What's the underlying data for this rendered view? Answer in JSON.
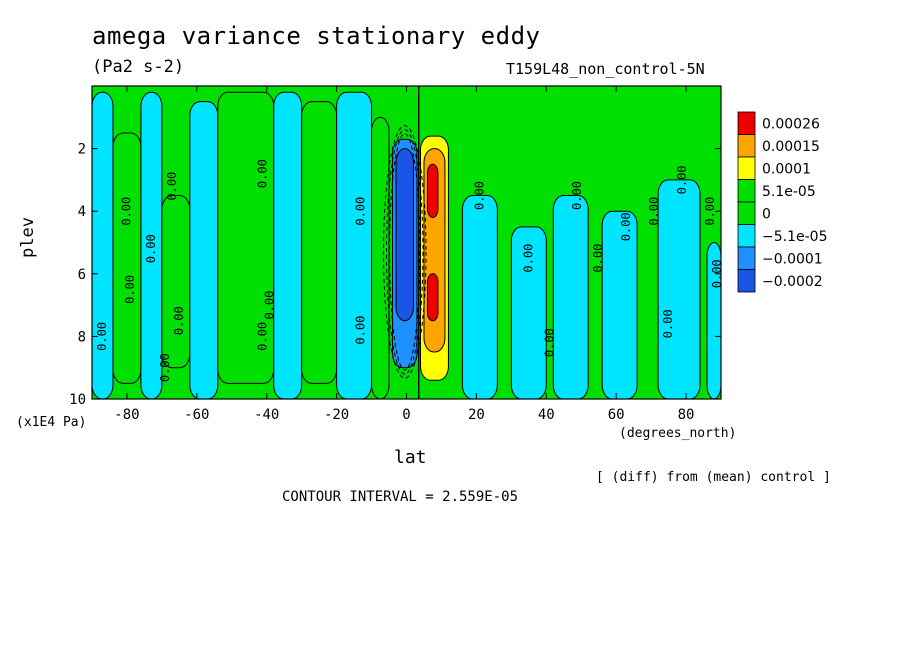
{
  "header": {
    "title": "amega variance stationary eddy",
    "units": "(Pa2 s-2)",
    "run_id": "T159L48_non_control-5N"
  },
  "axes": {
    "y_label": "plev",
    "y_units": "(x1E4 Pa)",
    "x_label": "lat",
    "x_units": "(degrees_north)"
  },
  "footer": {
    "diff_note": "[ (diff) from (mean) control ]",
    "contour_interval": "CONTOUR INTERVAL = 2.559E-05"
  },
  "colors": {
    "green": "#00e000",
    "cyan": "#00e5ff",
    "blue_mid": "#1e90ff",
    "blue_dark": "#1a55e6",
    "yellow": "#ffff00",
    "orange": "#ffa500",
    "red": "#ee0000"
  },
  "chart_data": {
    "type": "heatmap",
    "subtype": "filled contour",
    "x_label": "lat",
    "y_label": "plev",
    "xlim": [
      -90,
      90
    ],
    "ylim": [
      0,
      10
    ],
    "y_inverted": true,
    "x_ticks": [
      "-80",
      "-60",
      "-40",
      "-20",
      "0",
      "20",
      "40",
      "60",
      "80"
    ],
    "x_tick_values": [
      -80,
      -60,
      -40,
      -20,
      0,
      20,
      40,
      60,
      80
    ],
    "y_ticks": [
      "2",
      "4",
      "6",
      "8",
      "10"
    ],
    "y_tick_values": [
      2,
      4,
      6,
      8,
      10
    ],
    "legend": {
      "placement": "right",
      "levels": [
        "0.00026",
        "0.00015",
        "0.0001",
        "5.1e-05",
        "0",
        "−5.1e-05",
        "−0.0001",
        "−0.0002"
      ],
      "colors": [
        "#ee0000",
        "#ffa500",
        "#ffff00",
        "#00e000",
        "#00e000",
        "#00e5ff",
        "#1e90ff",
        "#1a55e6"
      ]
    },
    "contour_labels": [
      "0.00",
      "0.00",
      "0.00",
      "0.00",
      "0.00",
      "0.00",
      "0.00",
      "0.00",
      "0.00",
      "0.00",
      "0.00",
      "0.00",
      "0.00",
      "0.00",
      "0.00",
      "0.00",
      "0.00",
      "0.00",
      "0.00",
      "0.00",
      "0.00",
      "0.00",
      "0.00"
    ],
    "regions": [
      {
        "fill": "#00e5ff",
        "lat": [
          -90,
          -84
        ],
        "plev": [
          0.2,
          10
        ]
      },
      {
        "fill": "#00e000",
        "lat": [
          -84,
          -76
        ],
        "plev": [
          1.5,
          9.5
        ]
      },
      {
        "fill": "#00e5ff",
        "lat": [
          -76,
          -70
        ],
        "plev": [
          0.2,
          10
        ]
      },
      {
        "fill": "#00e000",
        "lat": [
          -70,
          -62
        ],
        "plev": [
          3.5,
          9
        ]
      },
      {
        "fill": "#00e5ff",
        "lat": [
          -62,
          -54
        ],
        "plev": [
          0.5,
          10
        ]
      },
      {
        "fill": "#00e000",
        "lat": [
          -54,
          -38
        ],
        "plev": [
          0.2,
          9.5
        ]
      },
      {
        "fill": "#00e5ff",
        "lat": [
          -38,
          -30
        ],
        "plev": [
          0.2,
          10
        ]
      },
      {
        "fill": "#00e000",
        "lat": [
          -30,
          -20
        ],
        "plev": [
          0.5,
          9.5
        ]
      },
      {
        "fill": "#00e5ff",
        "lat": [
          -20,
          -10
        ],
        "plev": [
          0.2,
          10
        ]
      },
      {
        "fill": "#00e000",
        "lat": [
          -10,
          -5
        ],
        "plev": [
          1,
          10
        ]
      },
      {
        "fill": "#1e90ff",
        "lat": [
          -4,
          3
        ],
        "plev": [
          1.7,
          9
        ]
      },
      {
        "fill": "#1a55e6",
        "lat": [
          -3,
          2
        ],
        "plev": [
          2,
          7.5
        ]
      },
      {
        "fill": "#ffff00",
        "lat": [
          4,
          12
        ],
        "plev": [
          1.6,
          9.4
        ]
      },
      {
        "fill": "#ffa500",
        "lat": [
          5,
          11
        ],
        "plev": [
          2,
          8.5
        ]
      },
      {
        "fill": "#ee0000",
        "lat": [
          6,
          9
        ],
        "plev": [
          2.5,
          4.2
        ]
      },
      {
        "fill": "#ee0000",
        "lat": [
          6,
          9
        ],
        "plev": [
          6,
          7.5
        ]
      },
      {
        "fill": "#00e5ff",
        "lat": [
          16,
          26
        ],
        "plev": [
          3.5,
          10
        ]
      },
      {
        "fill": "#00e5ff",
        "lat": [
          30,
          40
        ],
        "plev": [
          4.5,
          10
        ]
      },
      {
        "fill": "#00e5ff",
        "lat": [
          42,
          52
        ],
        "plev": [
          3.5,
          10
        ]
      },
      {
        "fill": "#00e5ff",
        "lat": [
          56,
          66
        ],
        "plev": [
          4,
          10
        ]
      },
      {
        "fill": "#00e5ff",
        "lat": [
          72,
          84
        ],
        "plev": [
          3,
          10
        ]
      },
      {
        "fill": "#00e5ff",
        "lat": [
          86,
          90
        ],
        "plev": [
          5,
          10
        ]
      }
    ]
  }
}
